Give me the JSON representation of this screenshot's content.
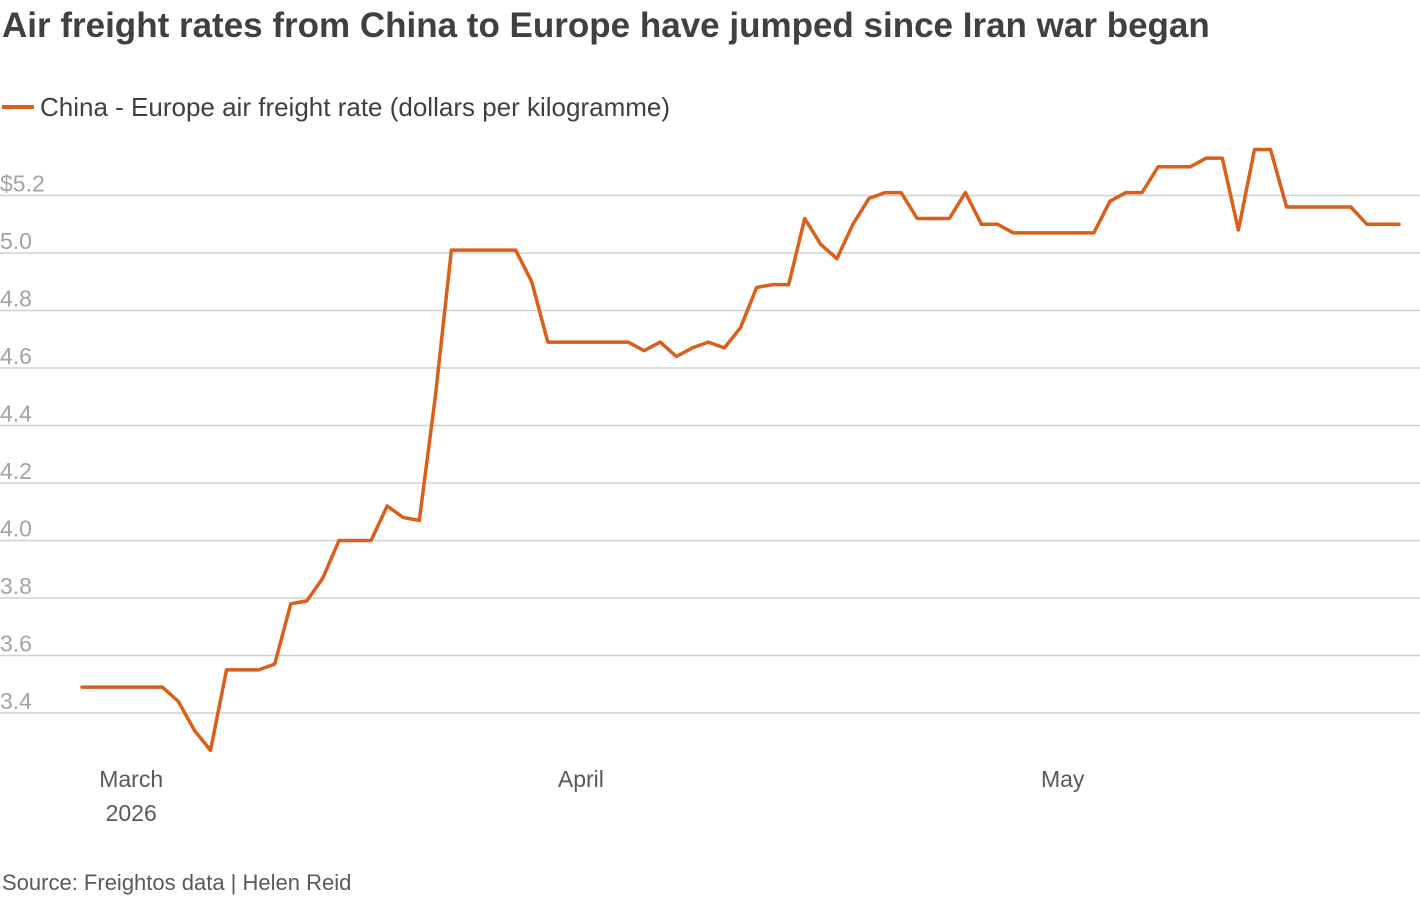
{
  "title": "Air freight rates from China to Europe have jumped since Iran war began",
  "source": "Source: Freightos data | Helen Reid",
  "colors": {
    "line": "#d95f1a",
    "grid": "#d0d0d0"
  },
  "chart_data": {
    "type": "line",
    "title": "Air freight rates from China to Europe have jumped since Iran war began",
    "ylim": [
      3.25,
      5.4
    ],
    "xlim": [
      "2026-02-28",
      "2026-05-24"
    ],
    "grid": true,
    "legend_position": "top-left",
    "y_ticks": [
      {
        "value": 5.2,
        "label": "$5.2"
      },
      {
        "value": 5.0,
        "label": "5.0"
      },
      {
        "value": 4.8,
        "label": "4.8"
      },
      {
        "value": 4.6,
        "label": "4.6"
      },
      {
        "value": 4.4,
        "label": "4.4"
      },
      {
        "value": 4.2,
        "label": "4.2"
      },
      {
        "value": 4.0,
        "label": "4.0"
      },
      {
        "value": 3.8,
        "label": "3.8"
      },
      {
        "value": 3.6,
        "label": "3.6"
      },
      {
        "value": 3.4,
        "label": "3.4"
      }
    ],
    "x_ticks": [
      {
        "date": "2026-03-04",
        "lines": [
          "March",
          "2026"
        ]
      },
      {
        "date": "2026-04-01",
        "lines": [
          "April"
        ]
      },
      {
        "date": "2026-05-01",
        "lines": [
          "May"
        ]
      }
    ],
    "series": [
      {
        "name": "China - Europe air freight rate (dollars per kilogramme)",
        "x": [
          "2026-03-01",
          "2026-03-02",
          "2026-03-03",
          "2026-03-04",
          "2026-03-05",
          "2026-03-06",
          "2026-03-07",
          "2026-03-08",
          "2026-03-09",
          "2026-03-10",
          "2026-03-11",
          "2026-03-12",
          "2026-03-13",
          "2026-03-14",
          "2026-03-15",
          "2026-03-16",
          "2026-03-17",
          "2026-03-18",
          "2026-03-19",
          "2026-03-20",
          "2026-03-21",
          "2026-03-22",
          "2026-03-23",
          "2026-03-24",
          "2026-03-25",
          "2026-03-26",
          "2026-03-27",
          "2026-03-28",
          "2026-03-29",
          "2026-03-30",
          "2026-03-31",
          "2026-04-01",
          "2026-04-02",
          "2026-04-03",
          "2026-04-04",
          "2026-04-05",
          "2026-04-06",
          "2026-04-07",
          "2026-04-08",
          "2026-04-09",
          "2026-04-10",
          "2026-04-11",
          "2026-04-12",
          "2026-04-13",
          "2026-04-14",
          "2026-04-15",
          "2026-04-16",
          "2026-04-17",
          "2026-04-18",
          "2026-04-19",
          "2026-04-20",
          "2026-04-21",
          "2026-04-22",
          "2026-04-23",
          "2026-04-24",
          "2026-04-25",
          "2026-04-26",
          "2026-04-27",
          "2026-04-28",
          "2026-04-29",
          "2026-04-30",
          "2026-05-01",
          "2026-05-02",
          "2026-05-03",
          "2026-05-04",
          "2026-05-05",
          "2026-05-06",
          "2026-05-07",
          "2026-05-08",
          "2026-05-09",
          "2026-05-10",
          "2026-05-11",
          "2026-05-12",
          "2026-05-13",
          "2026-05-14",
          "2026-05-15",
          "2026-05-16",
          "2026-05-17",
          "2026-05-18",
          "2026-05-19",
          "2026-05-20",
          "2026-05-21",
          "2026-05-22"
        ],
        "values": [
          3.49,
          3.49,
          3.49,
          3.49,
          3.49,
          3.49,
          3.44,
          3.34,
          3.27,
          3.55,
          3.55,
          3.55,
          3.57,
          3.78,
          3.79,
          3.87,
          4.0,
          4.0,
          4.0,
          4.12,
          4.08,
          4.07,
          4.5,
          5.01,
          5.01,
          5.01,
          5.01,
          5.01,
          4.9,
          4.69,
          4.69,
          4.69,
          4.69,
          4.69,
          4.69,
          4.66,
          4.69,
          4.64,
          4.67,
          4.69,
          4.67,
          4.74,
          4.88,
          4.89,
          4.89,
          5.12,
          5.03,
          4.98,
          5.1,
          5.19,
          5.21,
          5.21,
          5.12,
          5.12,
          5.12,
          5.21,
          5.1,
          5.1,
          5.07,
          5.07,
          5.07,
          5.07,
          5.07,
          5.07,
          5.18,
          5.21,
          5.21,
          5.3,
          5.3,
          5.3,
          5.33,
          5.33,
          5.08,
          5.36,
          5.36,
          5.16,
          5.16,
          5.16,
          5.16,
          5.16,
          5.1,
          5.1,
          5.1
        ]
      }
    ]
  }
}
